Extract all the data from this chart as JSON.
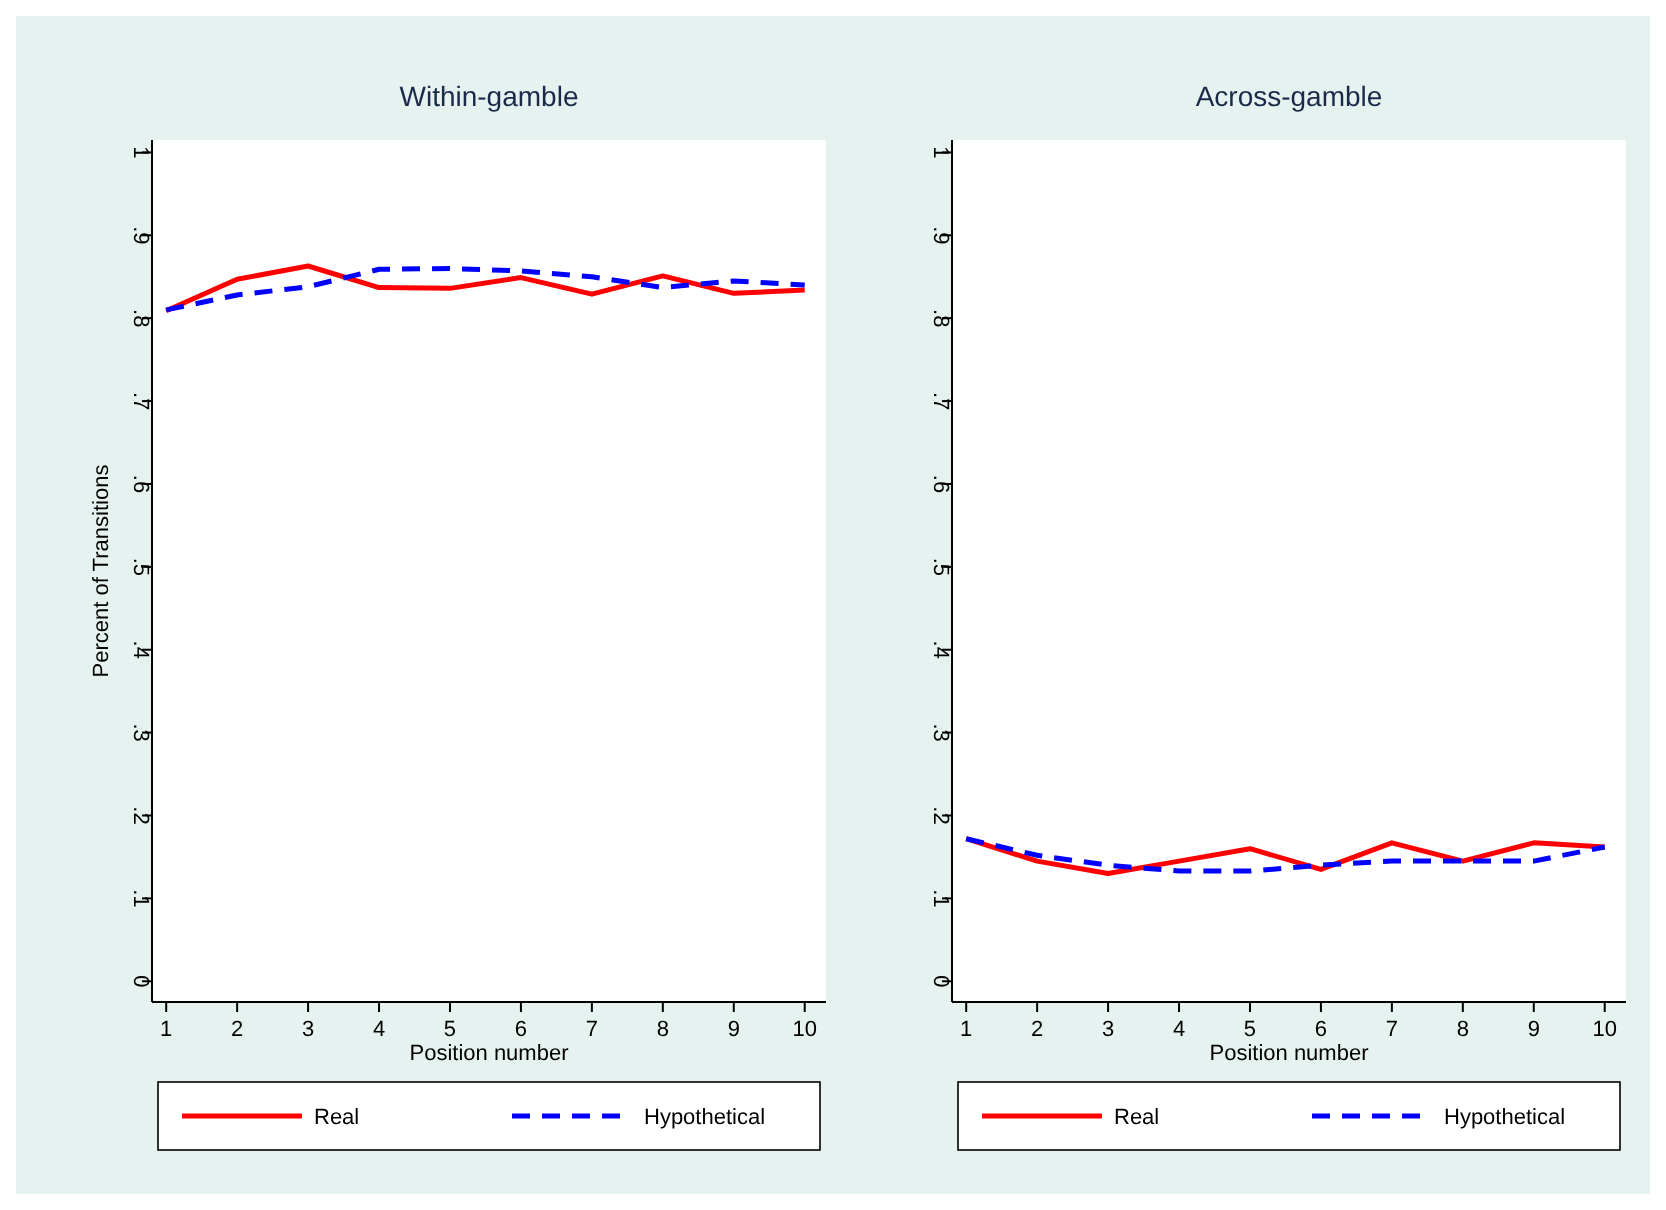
{
  "chart_data": [
    {
      "type": "line",
      "title": "Within-gamble",
      "xlabel": "Position number",
      "ylabel": "Percent of Transitions",
      "x": [
        1,
        2,
        3,
        4,
        5,
        6,
        7,
        8,
        9,
        10
      ],
      "series": [
        {
          "name": "Real",
          "color": "#ff0000",
          "line_style": "solid",
          "values": [
            0.809,
            0.847,
            0.863,
            0.837,
            0.836,
            0.849,
            0.829,
            0.851,
            0.83,
            0.834
          ]
        },
        {
          "name": "Hypothetical",
          "color": "#0000ff",
          "line_style": "dashed",
          "values": [
            0.81,
            0.828,
            0.838,
            0.859,
            0.86,
            0.857,
            0.85,
            0.837,
            0.845,
            0.84
          ]
        }
      ],
      "xlim": [
        0.8,
        10.3
      ],
      "ylim": [
        -0.025,
        1.015
      ],
      "xticks": [
        1,
        2,
        3,
        4,
        5,
        6,
        7,
        8,
        9,
        10
      ],
      "yticks": [
        {
          "value": 0,
          "label": "0"
        },
        {
          "value": 0.1,
          "label": ".1"
        },
        {
          "value": 0.2,
          "label": ".2"
        },
        {
          "value": 0.3,
          "label": ".3"
        },
        {
          "value": 0.4,
          "label": ".4"
        },
        {
          "value": 0.5,
          "label": ".5"
        },
        {
          "value": 0.6,
          "label": ".6"
        },
        {
          "value": 0.7,
          "label": ".7"
        },
        {
          "value": 0.8,
          "label": ".8"
        },
        {
          "value": 0.9,
          "label": ".9"
        },
        {
          "value": 1,
          "label": "1"
        }
      ],
      "legend": "bottom",
      "grid": false
    },
    {
      "type": "line",
      "title": "Across-gamble",
      "xlabel": "Position number",
      "x": [
        1,
        2,
        3,
        4,
        5,
        6,
        7,
        8,
        9,
        10
      ],
      "series": [
        {
          "name": "Real",
          "color": "#ff0000",
          "line_style": "solid",
          "values": [
            0.172,
            0.145,
            0.13,
            0.145,
            0.16,
            0.135,
            0.167,
            0.145,
            0.167,
            0.162
          ]
        },
        {
          "name": "Hypothetical",
          "color": "#0000ff",
          "line_style": "dashed",
          "values": [
            0.172,
            0.152,
            0.14,
            0.133,
            0.133,
            0.14,
            0.145,
            0.145,
            0.145,
            0.162
          ]
        }
      ],
      "xlim": [
        0.8,
        10.3
      ],
      "ylim": [
        -0.025,
        1.015
      ],
      "xticks": [
        1,
        2,
        3,
        4,
        5,
        6,
        7,
        8,
        9,
        10
      ],
      "yticks": [
        {
          "value": 0,
          "label": "0"
        },
        {
          "value": 0.1,
          "label": ".1"
        },
        {
          "value": 0.2,
          "label": ".2"
        },
        {
          "value": 0.3,
          "label": ".3"
        },
        {
          "value": 0.4,
          "label": ".4"
        },
        {
          "value": 0.5,
          "label": ".5"
        },
        {
          "value": 0.6,
          "label": ".6"
        },
        {
          "value": 0.7,
          "label": ".7"
        },
        {
          "value": 0.8,
          "label": ".8"
        },
        {
          "value": 0.9,
          "label": ".9"
        },
        {
          "value": 1,
          "label": "1"
        }
      ],
      "legend": "bottom",
      "grid": false
    }
  ]
}
